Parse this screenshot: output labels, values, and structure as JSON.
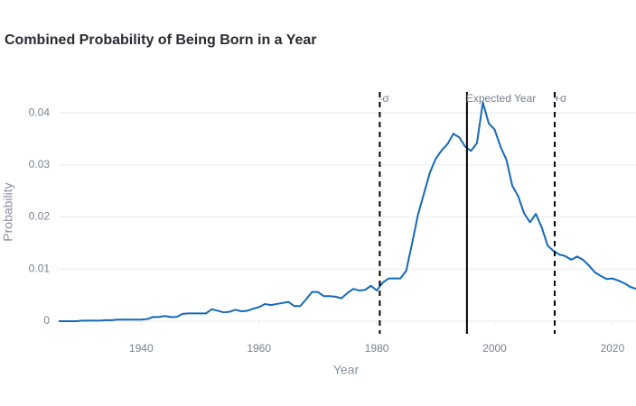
{
  "chart_data": {
    "type": "line",
    "title": "Combined Probability of Being Born in a Year",
    "xlabel": "Year",
    "ylabel": "Probability",
    "x": [
      1926,
      1927,
      1928,
      1929,
      1930,
      1931,
      1932,
      1933,
      1934,
      1935,
      1936,
      1937,
      1938,
      1939,
      1940,
      1941,
      1942,
      1943,
      1944,
      1945,
      1946,
      1947,
      1948,
      1949,
      1950,
      1951,
      1952,
      1953,
      1954,
      1955,
      1956,
      1957,
      1958,
      1959,
      1960,
      1961,
      1962,
      1963,
      1964,
      1965,
      1966,
      1967,
      1968,
      1969,
      1970,
      1971,
      1972,
      1973,
      1974,
      1975,
      1976,
      1977,
      1978,
      1979,
      1980,
      1981,
      1982,
      1983,
      1984,
      1985,
      1986,
      1987,
      1988,
      1989,
      1990,
      1991,
      1992,
      1993,
      1994,
      1995,
      1996,
      1997,
      1998,
      1999,
      2000,
      2001,
      2002,
      2003,
      2004,
      2005,
      2006,
      2007,
      2008,
      2009,
      2010,
      2011,
      2012,
      2013,
      2014,
      2015,
      2016,
      2017,
      2018,
      2019,
      2020,
      2021,
      2022,
      2023,
      2024
    ],
    "series": [
      {
        "name": "Probability",
        "color": "#1469b8",
        "values": [
          0.0,
          0.0,
          0.0,
          0.0,
          0.0001,
          0.0001,
          0.0001,
          0.0001,
          0.0002,
          0.0002,
          0.0003,
          0.0003,
          0.0003,
          0.0003,
          0.0003,
          0.0004,
          0.0008,
          0.0008,
          0.001,
          0.0008,
          0.0008,
          0.0014,
          0.0015,
          0.0015,
          0.0015,
          0.0015,
          0.0023,
          0.002,
          0.0017,
          0.0018,
          0.0022,
          0.0019,
          0.002,
          0.0024,
          0.0027,
          0.0033,
          0.0031,
          0.0033,
          0.0035,
          0.0037,
          0.0029,
          0.0029,
          0.0042,
          0.0056,
          0.0056,
          0.0048,
          0.0048,
          0.0047,
          0.0044,
          0.0054,
          0.0062,
          0.0059,
          0.006,
          0.0068,
          0.0059,
          0.0074,
          0.0082,
          0.0082,
          0.0082,
          0.0097,
          0.015,
          0.0205,
          0.0245,
          0.0285,
          0.0312,
          0.0328,
          0.034,
          0.036,
          0.0353,
          0.0335,
          0.0327,
          0.0342,
          0.042,
          0.038,
          0.0368,
          0.0335,
          0.031,
          0.026,
          0.024,
          0.0207,
          0.019,
          0.0206,
          0.018,
          0.0145,
          0.0135,
          0.0128,
          0.0125,
          0.0118,
          0.0124,
          0.0118,
          0.0107,
          0.0094,
          0.0087,
          0.0081,
          0.0082,
          0.0078,
          0.0073,
          0.0066,
          0.0062
        ]
      }
    ],
    "vlines": [
      {
        "x": 1980.5,
        "label": "-σ",
        "dashed": true
      },
      {
        "x": 1995.3,
        "label": "Expected Year",
        "dashed": false
      },
      {
        "x": 2010.2,
        "label": "+σ",
        "dashed": true
      }
    ],
    "xlim": [
      1926,
      2024
    ],
    "ylim": [
      0,
      0.044
    ],
    "xticks": [
      1940,
      1960,
      1980,
      2000,
      2020
    ],
    "yticks": [
      0,
      0.01,
      0.02,
      0.03,
      0.04
    ],
    "grid": true
  }
}
